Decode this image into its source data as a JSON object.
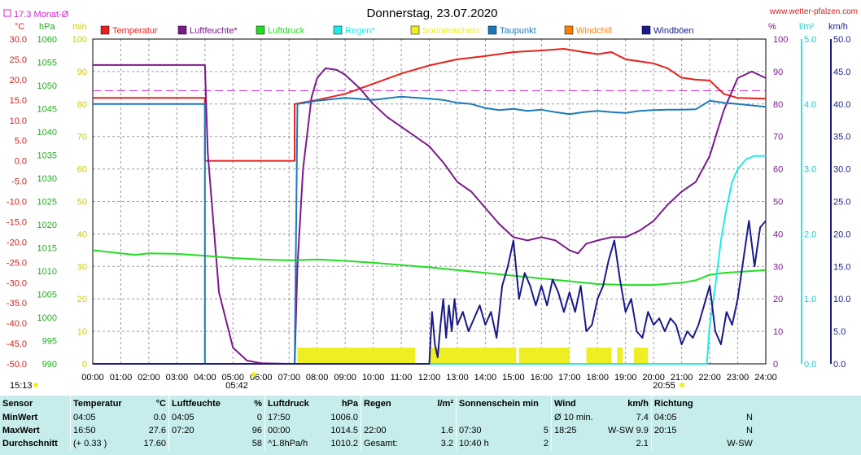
{
  "title": "Donnerstag, 23.07.2020",
  "site": "www.wetter-pfalzen.com",
  "monat_avg": "17.3 Monat-Ø",
  "unit_labels": {
    "temp": "°C",
    "press": "hPa",
    "minutes": "min",
    "percent": "%",
    "rain": "l/m²",
    "wind": "km/h"
  },
  "legend": [
    {
      "name": "Temperatur",
      "color": "#e8201c"
    },
    {
      "name": "Luftfeuchte*",
      "color": "#7a1a8a"
    },
    {
      "name": "Luftdruck",
      "color": "#22dd22"
    },
    {
      "name": "Regen*",
      "color": "#22e8e8"
    },
    {
      "name": "Sonnenschein",
      "color": "#eeee22"
    },
    {
      "name": "Taupunkt",
      "color": "#1a7ab8"
    },
    {
      "name": "Windchill",
      "color": "#ff8000"
    },
    {
      "name": "Windböen",
      "color": "#1a1a8a"
    }
  ],
  "sun_times": {
    "sunrise": "05:42",
    "sunset": "20:55",
    "now": "15:13"
  },
  "chart_data": {
    "type": "line",
    "title": "Donnerstag, 23.07.2020",
    "x_range_hours": [
      0,
      24
    ],
    "x_ticks": [
      "00:00",
      "01:00",
      "02:00",
      "03:00",
      "04:00",
      "05:00",
      "06:00",
      "07:00",
      "08:00",
      "09:00",
      "10:00",
      "11:00",
      "12:00",
      "13:00",
      "14:00",
      "15:00",
      "16:00",
      "17:00",
      "18:00",
      "19:00",
      "20:00",
      "21:00",
      "22:00",
      "23:00",
      "24:00"
    ],
    "axes": {
      "temp": {
        "unit": "°C",
        "min": -50,
        "max": 30,
        "ticks": [
          "30.0",
          "25.0",
          "20.0",
          "15.0",
          "10.0",
          "5.0",
          "0.0",
          "-5.0",
          "-10.0",
          "-15.0",
          "-20.0",
          "-25.0",
          "-30.0",
          "-35.0",
          "-40.0",
          "-45.0",
          "-50.0"
        ]
      },
      "press": {
        "unit": "hPa",
        "min": 990,
        "max": 1060,
        "ticks": [
          "1060",
          "1055",
          "1050",
          "1045",
          "1040",
          "1035",
          "1030",
          "1025",
          "1020",
          "1015",
          "1010",
          "1005",
          "1000",
          "995",
          "990"
        ]
      },
      "minutes": {
        "unit": "min",
        "min": 0,
        "max": 100,
        "ticks": [
          "100",
          "90",
          "80",
          "70",
          "60",
          "50",
          "40",
          "30",
          "20",
          "10",
          "0"
        ]
      },
      "percent": {
        "unit": "%",
        "min": 0,
        "max": 100,
        "ticks": [
          "100",
          "90",
          "80",
          "70",
          "60",
          "50",
          "40",
          "30",
          "20",
          "10",
          "0"
        ]
      },
      "rain": {
        "unit": "l/m²",
        "min": 0,
        "max": 5,
        "ticks": [
          "5.0",
          "4.0",
          "3.0",
          "2.0",
          "1.0",
          "0.0"
        ]
      },
      "wind": {
        "unit": "km/h",
        "min": 0,
        "max": 50,
        "ticks": [
          "50.0",
          "45.0",
          "40.0",
          "35.0",
          "30.0",
          "25.0",
          "20.0",
          "15.0",
          "10.0",
          "5.0",
          "0.0"
        ]
      }
    },
    "monthly_avg_temp": 17.3,
    "series": [
      {
        "name": "Temperatur",
        "axis": "temp",
        "color": "#e8201c",
        "points": [
          [
            0,
            15.5
          ],
          [
            4.0,
            15.5
          ],
          [
            4.0,
            0.0
          ],
          [
            7.2,
            0.0
          ],
          [
            7.2,
            14.0
          ],
          [
            8.0,
            15.0
          ],
          [
            9.0,
            16.5
          ],
          [
            10.0,
            19.0
          ],
          [
            11.0,
            21.5
          ],
          [
            12.0,
            23.5
          ],
          [
            13.0,
            25.0
          ],
          [
            14.0,
            25.8
          ],
          [
            15.0,
            26.8
          ],
          [
            16.0,
            27.2
          ],
          [
            16.8,
            27.6
          ],
          [
            17.5,
            26.8
          ],
          [
            18.0,
            26.3
          ],
          [
            18.5,
            26.8
          ],
          [
            19.0,
            25.0
          ],
          [
            20.0,
            24.0
          ],
          [
            20.5,
            22.8
          ],
          [
            21.0,
            20.5
          ],
          [
            21.5,
            20.0
          ],
          [
            22.0,
            19.8
          ],
          [
            22.5,
            16.5
          ],
          [
            23.0,
            15.5
          ],
          [
            24.0,
            15.3
          ]
        ]
      },
      {
        "name": "Luftfeuchte*",
        "axis": "percent",
        "color": "#7a1a8a",
        "points": [
          [
            0,
            92
          ],
          [
            4.0,
            92
          ],
          [
            4.1,
            65
          ],
          [
            4.5,
            22
          ],
          [
            5.0,
            5
          ],
          [
            5.5,
            1
          ],
          [
            6.0,
            0.2
          ],
          [
            7.0,
            0
          ],
          [
            7.2,
            0
          ],
          [
            7.3,
            30
          ],
          [
            7.5,
            60
          ],
          [
            7.8,
            82
          ],
          [
            8.0,
            88
          ],
          [
            8.3,
            91
          ],
          [
            8.7,
            90.5
          ],
          [
            9.0,
            89
          ],
          [
            9.5,
            85
          ],
          [
            10.0,
            80
          ],
          [
            10.5,
            76
          ],
          [
            11.0,
            73
          ],
          [
            11.5,
            70
          ],
          [
            12.0,
            67
          ],
          [
            12.5,
            62
          ],
          [
            13.0,
            56
          ],
          [
            13.5,
            53
          ],
          [
            14.0,
            48
          ],
          [
            14.5,
            43
          ],
          [
            15.0,
            39
          ],
          [
            15.5,
            38
          ],
          [
            16.0,
            39
          ],
          [
            16.5,
            38
          ],
          [
            17.0,
            35
          ],
          [
            17.3,
            34
          ],
          [
            17.6,
            37
          ],
          [
            18.0,
            38
          ],
          [
            18.5,
            39
          ],
          [
            19.0,
            39
          ],
          [
            19.5,
            41
          ],
          [
            20.0,
            44
          ],
          [
            20.5,
            49
          ],
          [
            21.0,
            53
          ],
          [
            21.5,
            56
          ],
          [
            22.0,
            64
          ],
          [
            22.5,
            78
          ],
          [
            23.0,
            88
          ],
          [
            23.5,
            90
          ],
          [
            24.0,
            88
          ]
        ]
      },
      {
        "name": "Luftdruck",
        "axis": "press",
        "color": "#22dd22",
        "points": [
          [
            0,
            1014.5
          ],
          [
            1.0,
            1013.8
          ],
          [
            1.5,
            1013.5
          ],
          [
            2.0,
            1013.8
          ],
          [
            3.0,
            1013.7
          ],
          [
            4.0,
            1013.3
          ],
          [
            5.0,
            1012.8
          ],
          [
            6.0,
            1012.5
          ],
          [
            7.0,
            1012.3
          ],
          [
            8.0,
            1012.5
          ],
          [
            9.0,
            1012.2
          ],
          [
            10.0,
            1011.8
          ],
          [
            11.0,
            1011.3
          ],
          [
            12.0,
            1010.8
          ],
          [
            13.0,
            1010.2
          ],
          [
            14.0,
            1009.6
          ],
          [
            15.0,
            1009.0
          ],
          [
            16.0,
            1008.4
          ],
          [
            17.0,
            1007.8
          ],
          [
            18.0,
            1007.2
          ],
          [
            19.0,
            1007.0
          ],
          [
            20.0,
            1007.0
          ],
          [
            21.0,
            1007.5
          ],
          [
            21.5,
            1008.0
          ],
          [
            22.0,
            1009.2
          ],
          [
            22.5,
            1009.6
          ],
          [
            23.0,
            1009.8
          ],
          [
            24.0,
            1010.2
          ]
        ]
      },
      {
        "name": "Regen*",
        "axis": "rain",
        "color": "#22e8e8",
        "points": [
          [
            0,
            0
          ],
          [
            21.9,
            0
          ],
          [
            22.0,
            0.6
          ],
          [
            22.2,
            1.2
          ],
          [
            22.4,
            1.9
          ],
          [
            22.6,
            2.4
          ],
          [
            22.8,
            2.8
          ],
          [
            23.0,
            3.0
          ],
          [
            23.3,
            3.15
          ],
          [
            23.6,
            3.2
          ],
          [
            24.0,
            3.2
          ]
        ]
      },
      {
        "name": "Taupunkt",
        "axis": "temp",
        "color": "#1a7ab8",
        "points": [
          [
            0,
            14.0
          ],
          [
            4.0,
            14.0
          ],
          [
            4.0,
            -50
          ],
          [
            7.2,
            -50
          ],
          [
            7.3,
            14.0
          ],
          [
            8.0,
            14.8
          ],
          [
            9.0,
            15.5
          ],
          [
            10.0,
            15.0
          ],
          [
            11.0,
            15.8
          ],
          [
            12.0,
            15.3
          ],
          [
            12.5,
            15.0
          ],
          [
            13.0,
            14.3
          ],
          [
            13.5,
            14.0
          ],
          [
            14.0,
            13.0
          ],
          [
            14.5,
            12.5
          ],
          [
            15.0,
            12.8
          ],
          [
            15.5,
            12.3
          ],
          [
            16.0,
            12.6
          ],
          [
            16.5,
            12.0
          ],
          [
            17.0,
            11.5
          ],
          [
            17.5,
            12.0
          ],
          [
            18.0,
            12.3
          ],
          [
            18.5,
            12.0
          ],
          [
            19.0,
            11.8
          ],
          [
            19.5,
            12.3
          ],
          [
            20.0,
            12.5
          ],
          [
            20.5,
            12.6
          ],
          [
            21.0,
            12.6
          ],
          [
            21.5,
            12.7
          ],
          [
            22.0,
            14.8
          ],
          [
            22.5,
            14.3
          ],
          [
            23.0,
            14.0
          ],
          [
            24.0,
            13.3
          ]
        ]
      },
      {
        "name": "Windböen",
        "axis": "wind",
        "color": "#1a1a8a",
        "points": [
          [
            0,
            0
          ],
          [
            12.0,
            0
          ],
          [
            12.1,
            8
          ],
          [
            12.2,
            3
          ],
          [
            12.3,
            1
          ],
          [
            12.4,
            6
          ],
          [
            12.5,
            10
          ],
          [
            12.6,
            4
          ],
          [
            12.7,
            9
          ],
          [
            12.8,
            5
          ],
          [
            12.9,
            10
          ],
          [
            13.0,
            6
          ],
          [
            13.2,
            8
          ],
          [
            13.4,
            5
          ],
          [
            13.6,
            7
          ],
          [
            13.8,
            9
          ],
          [
            14.0,
            6
          ],
          [
            14.2,
            8
          ],
          [
            14.4,
            4
          ],
          [
            14.6,
            12
          ],
          [
            14.8,
            15
          ],
          [
            15.0,
            19
          ],
          [
            15.2,
            10
          ],
          [
            15.4,
            14
          ],
          [
            15.6,
            12
          ],
          [
            15.8,
            9
          ],
          [
            16.0,
            12
          ],
          [
            16.2,
            9
          ],
          [
            16.4,
            13
          ],
          [
            16.6,
            11
          ],
          [
            16.8,
            8
          ],
          [
            17.0,
            11
          ],
          [
            17.2,
            8
          ],
          [
            17.4,
            12
          ],
          [
            17.6,
            5
          ],
          [
            17.8,
            6
          ],
          [
            18.0,
            10
          ],
          [
            18.2,
            12
          ],
          [
            18.4,
            16
          ],
          [
            18.6,
            19
          ],
          [
            18.8,
            13
          ],
          [
            19.0,
            8
          ],
          [
            19.2,
            10
          ],
          [
            19.4,
            5
          ],
          [
            19.6,
            4
          ],
          [
            19.8,
            8
          ],
          [
            20.0,
            6
          ],
          [
            20.2,
            7
          ],
          [
            20.4,
            5
          ],
          [
            20.6,
            7
          ],
          [
            20.8,
            6
          ],
          [
            21.0,
            3
          ],
          [
            21.2,
            5
          ],
          [
            21.4,
            4
          ],
          [
            21.6,
            6
          ],
          [
            21.8,
            9
          ],
          [
            22.0,
            12
          ],
          [
            22.2,
            5
          ],
          [
            22.4,
            3
          ],
          [
            22.6,
            8
          ],
          [
            22.8,
            6
          ],
          [
            23.0,
            10
          ],
          [
            23.2,
            16
          ],
          [
            23.4,
            22
          ],
          [
            23.6,
            15
          ],
          [
            23.8,
            21
          ],
          [
            24.0,
            22
          ]
        ]
      }
    ],
    "sunshine_bars": {
      "name": "Sonnenschein",
      "axis": "minutes",
      "color": "#eeee22",
      "height": 5,
      "segments": [
        [
          7.3,
          11.5
        ],
        [
          12.0,
          15.1
        ],
        [
          15.2,
          17.0
        ],
        [
          17.6,
          18.5
        ],
        [
          18.7,
          18.9
        ],
        [
          19.3,
          19.8
        ]
      ]
    }
  },
  "stats": {
    "headers": {
      "sensor": "Sensor",
      "temp": "Temperatur",
      "temp_unit": "°C",
      "hum": "Luftfeuchte",
      "hum_unit": "%",
      "press": "Luftdruck",
      "press_unit": "hPa",
      "rain": "Regen",
      "rain_unit": "l/m²",
      "sun": "Sonnenschein min",
      "wind": "Wind",
      "wind_unit": "km/h",
      "dir": "Richtung"
    },
    "rows": [
      {
        "label": "MinWert",
        "temp_time": "04:05",
        "temp_val": "0.0",
        "hum_time": "04:05",
        "hum_val": "0",
        "press_time": "17:50",
        "press_val": "1006.0",
        "rain_time": "",
        "rain_val": "",
        "sun_time": "",
        "sun_val": "",
        "wind_time": "Ø 10 min.",
        "wind_val": "7.4",
        "dir_time": "04:05",
        "dir_val": "N"
      },
      {
        "label": "MaxWert",
        "temp_time": "16:50",
        "temp_val": "27.6",
        "hum_time": "07:20",
        "hum_val": "96",
        "press_time": "00:00",
        "press_val": "1014.5",
        "rain_time": "22:00",
        "rain_val": "1.6",
        "sun_time": "07:30",
        "sun_val": "5",
        "wind_time": "18:25",
        "wind_val": "W-SW 9.9",
        "dir_time": "20:15",
        "dir_val": "N"
      },
      {
        "label": "Durchschnitt",
        "temp_time": "(+ 0.33 )",
        "temp_val": "17.60",
        "hum_time": "",
        "hum_val": "58",
        "press_time": "^1.8hPa/h",
        "press_val": "1010.2",
        "rain_time": "Gesamt:",
        "rain_val": "3.2",
        "sun_time": "10:40 h",
        "sun_val": "2",
        "wind_time": "",
        "wind_val": "2.1",
        "dir_time": "",
        "dir_val": "W-SW"
      }
    ]
  }
}
